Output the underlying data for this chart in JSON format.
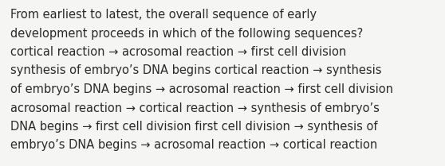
{
  "background_color": "#f5f5f3",
  "text_color": "#2a2a2a",
  "font_size": 10.5,
  "lines": [
    "From earliest to latest, the overall sequence of early",
    "development proceeds in which of the following sequences?",
    "cortical reaction → acrosomal reaction → first cell division",
    "synthesis of embryo’s DNA begins cortical reaction → synthesis",
    "of embryo’s DNA begins → acrosomal reaction → first cell division",
    "acrosomal reaction → cortical reaction → synthesis of embryo’s",
    "DNA begins → first cell division first cell division → synthesis of",
    "embryo’s DNA begins → acrosomal reaction → cortical reaction"
  ]
}
